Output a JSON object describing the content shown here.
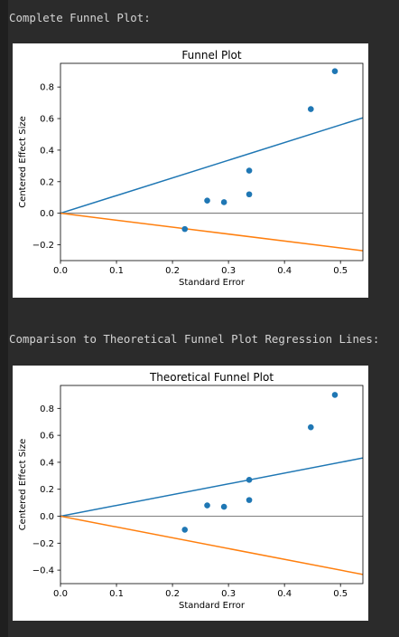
{
  "outputs": [
    {
      "text": "Complete Funnel Plot:"
    },
    {
      "text": "Comparison to Theoretical Funnel Plot Regression Lines:"
    }
  ],
  "chart_data": [
    {
      "type": "scatter",
      "title": "Funnel Plot",
      "xlabel": "Standard Error",
      "ylabel": "Centered Effect Size",
      "xlim": [
        0.0,
        0.54
      ],
      "ylim": [
        -0.3,
        0.95
      ],
      "xticks": [
        "0.0",
        "0.1",
        "0.2",
        "0.3",
        "0.4",
        "0.5"
      ],
      "xtick_values": [
        0.0,
        0.1,
        0.2,
        0.3,
        0.4,
        0.5
      ],
      "yticks": [
        "−0.2",
        "0.0",
        "0.2",
        "0.4",
        "0.6",
        "0.8"
      ],
      "ytick_values": [
        -0.2,
        0.0,
        0.2,
        0.4,
        0.6,
        0.8
      ],
      "points": [
        {
          "x": 0.222,
          "y": -0.1
        },
        {
          "x": 0.262,
          "y": 0.08
        },
        {
          "x": 0.292,
          "y": 0.07
        },
        {
          "x": 0.337,
          "y": 0.12
        },
        {
          "x": 0.337,
          "y": 0.27
        },
        {
          "x": 0.447,
          "y": 0.66
        },
        {
          "x": 0.49,
          "y": 0.9
        }
      ],
      "lines": [
        {
          "slope": 1.12,
          "color": "#1f77b4"
        },
        {
          "slope": -0.44,
          "color": "#ff7f0e"
        }
      ],
      "hline": {
        "y": 0.0,
        "color": "#555555"
      },
      "point_color": "#1f77b4",
      "grid": false
    },
    {
      "type": "scatter",
      "title": "Theoretical Funnel Plot",
      "xlabel": "Standard Error",
      "ylabel": "Centered Effect Size",
      "xlim": [
        0.0,
        0.54
      ],
      "ylim": [
        -0.5,
        0.97
      ],
      "xticks": [
        "0.0",
        "0.1",
        "0.2",
        "0.3",
        "0.4",
        "0.5"
      ],
      "xtick_values": [
        0.0,
        0.1,
        0.2,
        0.3,
        0.4,
        0.5
      ],
      "yticks": [
        "−0.4",
        "−0.2",
        "0.0",
        "0.2",
        "0.4",
        "0.6",
        "0.8"
      ],
      "ytick_values": [
        -0.4,
        -0.2,
        0.0,
        0.2,
        0.4,
        0.6,
        0.8
      ],
      "points": [
        {
          "x": 0.222,
          "y": -0.1
        },
        {
          "x": 0.262,
          "y": 0.08
        },
        {
          "x": 0.292,
          "y": 0.07
        },
        {
          "x": 0.337,
          "y": 0.12
        },
        {
          "x": 0.337,
          "y": 0.27
        },
        {
          "x": 0.447,
          "y": 0.66
        },
        {
          "x": 0.49,
          "y": 0.9
        }
      ],
      "lines": [
        {
          "slope": 0.8,
          "color": "#1f77b4"
        },
        {
          "slope": -0.8,
          "color": "#ff7f0e"
        }
      ],
      "hline": {
        "y": 0.0,
        "color": "#555555"
      },
      "point_color": "#1f77b4",
      "grid": false
    }
  ]
}
